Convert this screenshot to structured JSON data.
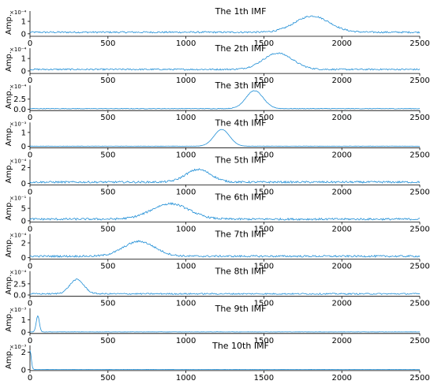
{
  "chart_data": [
    {
      "type": "line",
      "title": "The 1th IMF",
      "ylabel": "Amp.",
      "exponent": "×10⁻⁴",
      "yticks": [
        "0",
        "1"
      ],
      "ylim": [
        -0.2,
        1.7
      ],
      "xlim": [
        0,
        2500
      ],
      "xticks": [
        "0",
        "500",
        "1000",
        "1500",
        "2000",
        "2500"
      ],
      "series": [
        {
          "color": "#1f8ed6",
          "peak_x": 1810,
          "peak_y": 1.3,
          "width_sigma": 110,
          "noise": 0.13,
          "baseline": 0.1
        }
      ]
    },
    {
      "type": "line",
      "title": "The 2th IMF",
      "ylabel": "Amp.",
      "exponent": "×10⁻⁴",
      "yticks": [
        "0",
        "1"
      ],
      "ylim": [
        -0.2,
        1.7
      ],
      "xlim": [
        0,
        2500
      ],
      "xticks": [
        "0",
        "500",
        "1000",
        "1500",
        "2000",
        "2500"
      ],
      "series": [
        {
          "color": "#1f8ed6",
          "peak_x": 1590,
          "peak_y": 1.3,
          "width_sigma": 95,
          "noise": 0.12,
          "baseline": 0.1
        }
      ]
    },
    {
      "type": "line",
      "title": "The 3th IMF",
      "ylabel": "Amp.",
      "exponent": "×10⁻⁴",
      "yticks": [
        "0.0",
        "2.5"
      ],
      "ylim": [
        -0.3,
        5.5
      ],
      "xlim": [
        0,
        2500
      ],
      "xticks": [
        "0",
        "500",
        "1000",
        "1500",
        "2000",
        "2500"
      ],
      "series": [
        {
          "color": "#1f8ed6",
          "peak_x": 1440,
          "peak_y": 4.4,
          "width_sigma": 55,
          "noise": 0.15,
          "baseline": 0.15
        }
      ]
    },
    {
      "type": "line",
      "title": "The 4th IMF",
      "ylabel": "Amp.",
      "exponent": "×10⁻³",
      "yticks": [
        "0",
        "1"
      ],
      "ylim": [
        -0.1,
        1.6
      ],
      "xlim": [
        0,
        2500
      ],
      "xticks": [
        "0",
        "500",
        "1000",
        "1500",
        "2000",
        "2500"
      ],
      "series": [
        {
          "color": "#1f8ed6",
          "peak_x": 1230,
          "peak_y": 1.2,
          "width_sigma": 50,
          "noise": 0.015,
          "baseline": 0.01
        }
      ]
    },
    {
      "type": "line",
      "title": "The 5th IMF",
      "ylabel": "Amp.",
      "exponent": "×10⁻⁴",
      "yticks": [
        "0",
        "2"
      ],
      "ylim": [
        -0.2,
        2.8
      ],
      "xlim": [
        0,
        2500
      ],
      "xticks": [
        "0",
        "500",
        "1000",
        "1500",
        "2000",
        "2500"
      ],
      "series": [
        {
          "color": "#1f8ed6",
          "peak_x": 1080,
          "peak_y": 1.6,
          "width_sigma": 80,
          "noise": 0.25,
          "baseline": 0.1
        }
      ]
    },
    {
      "type": "line",
      "title": "The 6th IMF",
      "ylabel": "Amp.",
      "exponent": "×10⁻¹",
      "yticks": [
        "0",
        "5"
      ],
      "ylim": [
        -0.5,
        9
      ],
      "xlim": [
        0,
        2500
      ],
      "xticks": [
        "0",
        "500",
        "1000",
        "1500",
        "2000",
        "2500"
      ],
      "series": [
        {
          "color": "#1f8ed6",
          "peak_x": 900,
          "peak_y": 6.2,
          "width_sigma": 120,
          "noise": 0.8,
          "baseline": 0.5
        }
      ]
    },
    {
      "type": "line",
      "title": "The 7th IMF",
      "ylabel": "Amp.",
      "exponent": "×10⁻⁴",
      "yticks": [
        "0",
        "2"
      ],
      "ylim": [
        -0.2,
        3
      ],
      "xlim": [
        0,
        2500
      ],
      "xticks": [
        "0",
        "500",
        "1000",
        "1500",
        "2000",
        "2500"
      ],
      "series": [
        {
          "color": "#1f8ed6",
          "peak_x": 700,
          "peak_y": 2.0,
          "width_sigma": 100,
          "noise": 0.25,
          "baseline": 0.15
        }
      ]
    },
    {
      "type": "line",
      "title": "The 8th IMF",
      "ylabel": "Amp.",
      "exponent": "×10⁻⁴",
      "yticks": [
        "0.0",
        "2.5"
      ],
      "ylim": [
        -0.3,
        5
      ],
      "xlim": [
        0,
        2500
      ],
      "xticks": [
        "0",
        "500",
        "1000",
        "1500",
        "2000",
        "2500"
      ],
      "series": [
        {
          "color": "#1f8ed6",
          "peak_x": 300,
          "peak_y": 3.2,
          "width_sigma": 45,
          "noise": 0.3,
          "baseline": 0.2
        }
      ]
    },
    {
      "type": "line",
      "title": "The 9th IMF",
      "ylabel": "Amp.",
      "exponent": "×10⁻³",
      "yticks": [
        "0",
        "1"
      ],
      "ylim": [
        -0.1,
        1.8
      ],
      "xlim": [
        0,
        2500
      ],
      "xticks": [
        "0",
        "500",
        "1000",
        "1500",
        "2000",
        "2500"
      ],
      "series": [
        {
          "color": "#1f8ed6",
          "peak_x": 50,
          "peak_y": 1.3,
          "width_sigma": 10,
          "noise": 0.02,
          "baseline": 0.02
        }
      ]
    },
    {
      "type": "line",
      "title": "The 10th IMF",
      "ylabel": "Amp.",
      "exponent": "×10⁻³",
      "yticks": [
        "0",
        "2"
      ],
      "ylim": [
        -0.1,
        2.6
      ],
      "xlim": [
        0,
        2500
      ],
      "xticks": [
        "0",
        "500",
        "1000",
        "1500",
        "2000",
        "2500"
      ],
      "series": [
        {
          "color": "#1f8ed6",
          "peak_x": 0,
          "peak_y": 2.2,
          "width_sigma": 8,
          "noise": 0.02,
          "baseline": 0.02
        }
      ]
    }
  ]
}
